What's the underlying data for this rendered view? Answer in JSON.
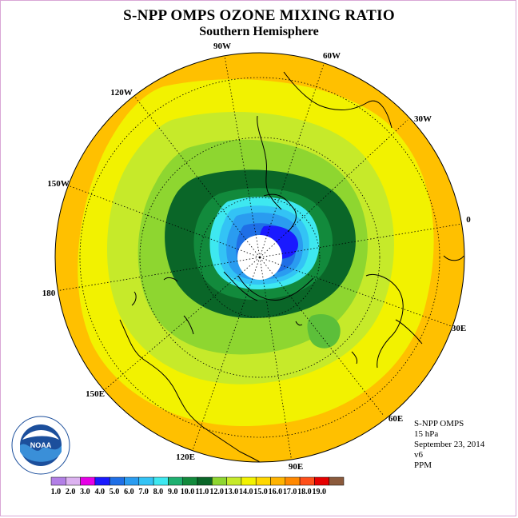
{
  "title": "S-NPP OMPS OZONE MIXING RATIO",
  "subtitle": "Southern Hemisphere",
  "info": {
    "instrument": "S-NPP OMPS",
    "level": "15 hPa",
    "date": "September 23, 2014",
    "version": "v6",
    "units": "PPM"
  },
  "longitude_labels": [
    "90W",
    "60W",
    "30W",
    "0",
    "30E",
    "60E",
    "90E",
    "120E",
    "150E",
    "180",
    "150W",
    "120W"
  ],
  "colorbar": {
    "labels": [
      "1.0",
      "2.0",
      "3.0",
      "4.0",
      "5.0",
      "6.0",
      "7.0",
      "8.0",
      "9.0",
      "10.0",
      "11.0",
      "12.0",
      "13.0",
      "14.0",
      "15.0",
      "16.0",
      "17.0",
      "18.0",
      "19.0"
    ],
    "colors": [
      "#b27fe6",
      "#dcb2f0",
      "#e600e6",
      "#1a1aff",
      "#1f6fe6",
      "#2a9cf0",
      "#33c3f5",
      "#3ee8f0",
      "#1eb070",
      "#128a3c",
      "#0a6628",
      "#8ed630",
      "#c6ea2a",
      "#f2f200",
      "#ffd700",
      "#ffb300",
      "#ff8800",
      "#ff4f1a",
      "#e60000",
      "#8b5a3c"
    ]
  },
  "logo_text": "NOAA"
}
